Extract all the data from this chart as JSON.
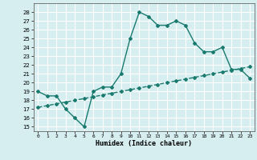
{
  "x": [
    0,
    1,
    2,
    3,
    4,
    5,
    6,
    7,
    8,
    9,
    10,
    11,
    12,
    13,
    14,
    15,
    16,
    17,
    18,
    19,
    20,
    21,
    22,
    23
  ],
  "y_upper": [
    19,
    18.5,
    18.5,
    17,
    16,
    15,
    19,
    19.5,
    19.5,
    21,
    25,
    28,
    27.5,
    26.5,
    26.5,
    27,
    26.5,
    24.5,
    23.5,
    23.5,
    24,
    21.5,
    21.5,
    20.5
  ],
  "y_lower": [
    17.2,
    17.4,
    17.6,
    17.8,
    18.0,
    18.2,
    18.4,
    18.6,
    18.8,
    19.0,
    19.2,
    19.4,
    19.6,
    19.8,
    20.0,
    20.2,
    20.4,
    20.6,
    20.8,
    21.0,
    21.2,
    21.4,
    21.6,
    21.8
  ],
  "color": "#1a7a6e",
  "bg_color": "#d6eef0",
  "xlabel": "Humidex (Indice chaleur)",
  "ylim": [
    14.5,
    29
  ],
  "xlim": [
    -0.5,
    23.5
  ],
  "yticks": [
    15,
    16,
    17,
    18,
    19,
    20,
    21,
    22,
    23,
    24,
    25,
    26,
    27,
    28
  ],
  "xticks": [
    0,
    1,
    2,
    3,
    4,
    5,
    6,
    7,
    8,
    9,
    10,
    11,
    12,
    13,
    14,
    15,
    16,
    17,
    18,
    19,
    20,
    21,
    22,
    23
  ],
  "grid_color": "#ffffff",
  "marker": "D",
  "marker_size": 2,
  "line_width": 1.0
}
